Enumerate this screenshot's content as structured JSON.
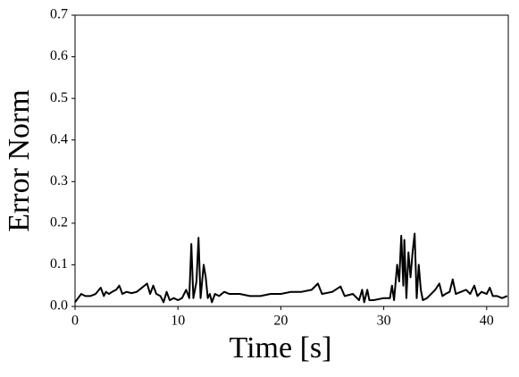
{
  "chart_data": {
    "type": "line",
    "xlabel": "Time [s]",
    "ylabel": "Error Norm",
    "x": [
      0,
      0.3,
      0.6,
      1.0,
      1.5,
      2.0,
      2.5,
      2.8,
      3.0,
      3.3,
      3.6,
      4.0,
      4.3,
      4.6,
      5.0,
      5.5,
      6.0,
      6.5,
      7.0,
      7.3,
      7.6,
      7.9,
      8.3,
      8.6,
      8.9,
      9.2,
      9.6,
      10.0,
      10.4,
      10.8,
      11.1,
      11.3,
      11.5,
      11.8,
      12.0,
      12.2,
      12.5,
      12.7,
      12.9,
      13.1,
      13.3,
      13.6,
      14.0,
      14.5,
      15,
      16,
      17,
      18,
      19,
      20,
      21,
      22,
      23,
      23.6,
      24,
      25,
      25.8,
      26.2,
      27,
      27.6,
      27.9,
      28.1,
      28.4,
      28.6,
      29,
      30,
      30.6,
      30.8,
      31.0,
      31.3,
      31.5,
      31.7,
      31.9,
      32.0,
      32.2,
      32.4,
      32.6,
      32.8,
      33.0,
      33.2,
      33.4,
      33.6,
      33.8,
      34.2,
      34.6,
      35,
      35.4,
      35.7,
      36,
      36.4,
      36.7,
      37,
      37.5,
      38,
      38.4,
      38.8,
      39.1,
      39.5,
      40,
      40.3,
      40.6,
      41,
      41.5,
      42
    ],
    "values": [
      0.01,
      0.02,
      0.03,
      0.025,
      0.025,
      0.03,
      0.045,
      0.025,
      0.035,
      0.03,
      0.035,
      0.04,
      0.05,
      0.03,
      0.035,
      0.032,
      0.035,
      0.045,
      0.055,
      0.03,
      0.05,
      0.03,
      0.025,
      0.01,
      0.035,
      0.015,
      0.02,
      0.015,
      0.02,
      0.04,
      0.02,
      0.15,
      0.02,
      0.06,
      0.165,
      0.02,
      0.1,
      0.07,
      0.02,
      0.03,
      0.01,
      0.03,
      0.025,
      0.035,
      0.03,
      0.03,
      0.025,
      0.025,
      0.03,
      0.03,
      0.035,
      0.035,
      0.04,
      0.055,
      0.03,
      0.035,
      0.048,
      0.025,
      0.03,
      0.015,
      0.04,
      0.01,
      0.04,
      0.015,
      0.015,
      0.02,
      0.02,
      0.05,
      0.015,
      0.1,
      0.06,
      0.17,
      0.05,
      0.16,
      0.02,
      0.13,
      0.07,
      0.13,
      0.175,
      0.02,
      0.1,
      0.04,
      0.015,
      0.02,
      0.03,
      0.04,
      0.055,
      0.025,
      0.03,
      0.035,
      0.065,
      0.03,
      0.035,
      0.04,
      0.03,
      0.05,
      0.025,
      0.035,
      0.03,
      0.045,
      0.025,
      0.025,
      0.02,
      0.025
    ],
    "color": "#000000",
    "xlim": [
      0,
      42.1
    ],
    "xticks": [
      0,
      10,
      20,
      30,
      40
    ],
    "ylim": [
      0,
      0.7
    ],
    "yticks": [
      {
        "value": 0,
        "label": "0.0"
      },
      {
        "value": 0.1,
        "label": "0.1"
      },
      {
        "value": 0.2,
        "label": "0.2"
      },
      {
        "value": 0.3,
        "label": "0.3"
      },
      {
        "value": 0.4,
        "label": "0.4"
      },
      {
        "value": 0.5,
        "label": "0.5"
      },
      {
        "value": 0.6,
        "label": "0.6"
      },
      {
        "value": 0.7,
        "label": "0.7"
      }
    ]
  }
}
